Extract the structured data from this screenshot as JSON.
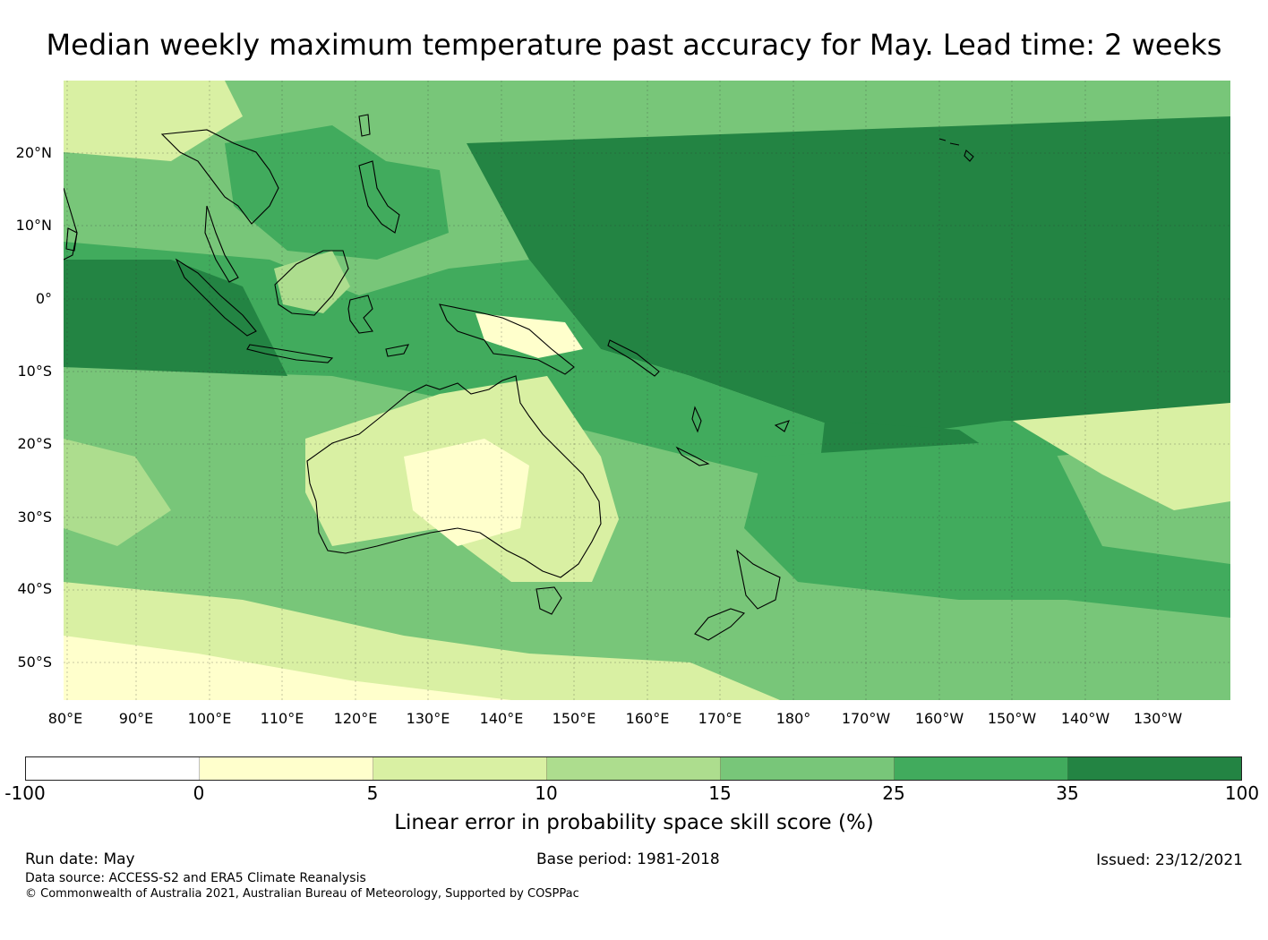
{
  "title": "Median weekly maximum temperature past accuracy for May. Lead time: 2 weeks",
  "map": {
    "latitude_labels": [
      "20°N",
      "10°N",
      "0°",
      "10°S",
      "20°S",
      "30°S",
      "40°S",
      "50°S"
    ],
    "longitude_labels": [
      "80°E",
      "90°E",
      "100°E",
      "110°E",
      "120°E",
      "130°E",
      "140°E",
      "150°E",
      "160°E",
      "170°E",
      "180°",
      "170°W",
      "160°W",
      "150°W",
      "140°W",
      "130°W"
    ],
    "icon": "skill-score-map"
  },
  "colorbar": {
    "ticks": [
      "-100",
      "0",
      "5",
      "10",
      "15",
      "25",
      "35",
      "100"
    ],
    "colors": [
      "#ffffff",
      "#ffffcc",
      "#d9f0a3",
      "#addd8e",
      "#78c679",
      "#41ab5d",
      "#238443"
    ],
    "label": "Linear error in probability space skill score (%)"
  },
  "footer": {
    "run_date": "Run date: May",
    "base_period": "Base period: 1981-2018",
    "issued": "Issued: 23/12/2021",
    "data_source": "Data source: ACCESS-S2 and ERA5 Climate Reanalysis",
    "copyright": "© Commonwealth of Australia 2021, Australian Bureau of Meteorology, Supported by COSPPac"
  }
}
